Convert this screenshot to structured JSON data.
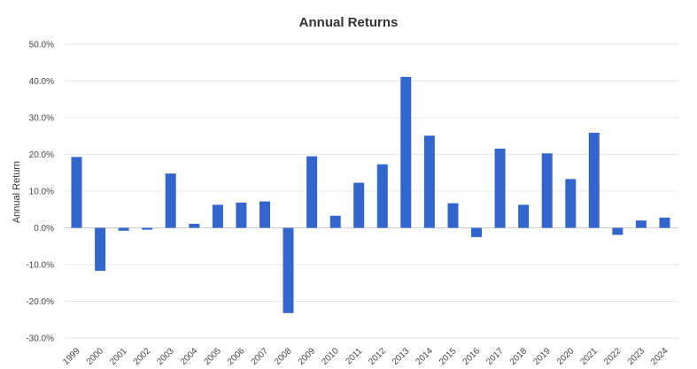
{
  "chart_data": {
    "type": "bar",
    "title": "Annual Returns",
    "xlabel": "",
    "ylabel": "Annual Return",
    "categories": [
      "1999",
      "2000",
      "2001",
      "2002",
      "2003",
      "2004",
      "2005",
      "2006",
      "2007",
      "2008",
      "2009",
      "2010",
      "2011",
      "2012",
      "2013",
      "2014",
      "2015",
      "2016",
      "2017",
      "2018",
      "2019",
      "2020",
      "2021",
      "2022",
      "2023",
      "2024"
    ],
    "values": [
      19.3,
      -11.7,
      -0.8,
      -0.5,
      14.8,
      1.1,
      6.3,
      6.9,
      7.2,
      -23.2,
      19.5,
      3.3,
      12.3,
      17.3,
      41.1,
      25.1,
      6.7,
      -2.5,
      21.6,
      6.3,
      20.3,
      13.3,
      25.9,
      -1.9,
      2.0,
      2.8
    ],
    "ylim": [
      -30,
      50
    ],
    "yticks": [
      "50.0%",
      "40.0%",
      "30.0%",
      "20.0%",
      "10.0%",
      "0.0%",
      "-10.0%",
      "-20.0%",
      "-30.0%"
    ],
    "ytick_values": [
      50,
      40,
      30,
      20,
      10,
      0,
      -10,
      -20,
      -30
    ],
    "grid": true,
    "legend": "none",
    "colors": {
      "bar": "#3366cc",
      "grid": "#e6e6e6",
      "zero_line": "#cccccc"
    }
  }
}
